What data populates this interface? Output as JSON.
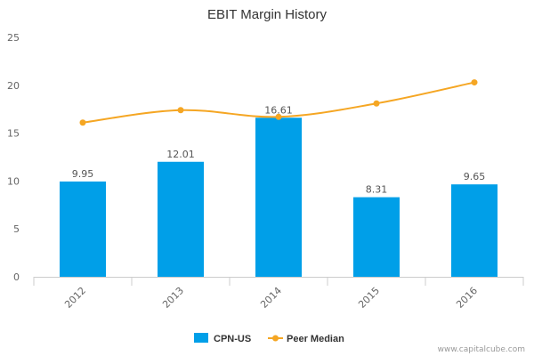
{
  "chart_data": {
    "type": "bar",
    "title": "EBIT Margin History",
    "categories": [
      "2012",
      "2013",
      "2014",
      "2015",
      "2016"
    ],
    "series": [
      {
        "name": "CPN-US",
        "type": "bar",
        "color": "#009fe8",
        "values": [
          9.95,
          12.01,
          16.61,
          8.31,
          9.65
        ],
        "labels": [
          "9.95",
          "12.01",
          "16.61",
          "8.31",
          "9.65"
        ]
      },
      {
        "name": "Peer Median",
        "type": "line",
        "color": "#f5a623",
        "values": [
          16.1,
          17.4,
          16.7,
          18.1,
          20.3
        ]
      }
    ],
    "yticks": [
      "0",
      "5",
      "10",
      "15",
      "20",
      "25"
    ],
    "ylim": [
      0,
      25
    ],
    "grid": false,
    "legend": "bottom-center"
  },
  "credit": "www.capitalcube.com"
}
